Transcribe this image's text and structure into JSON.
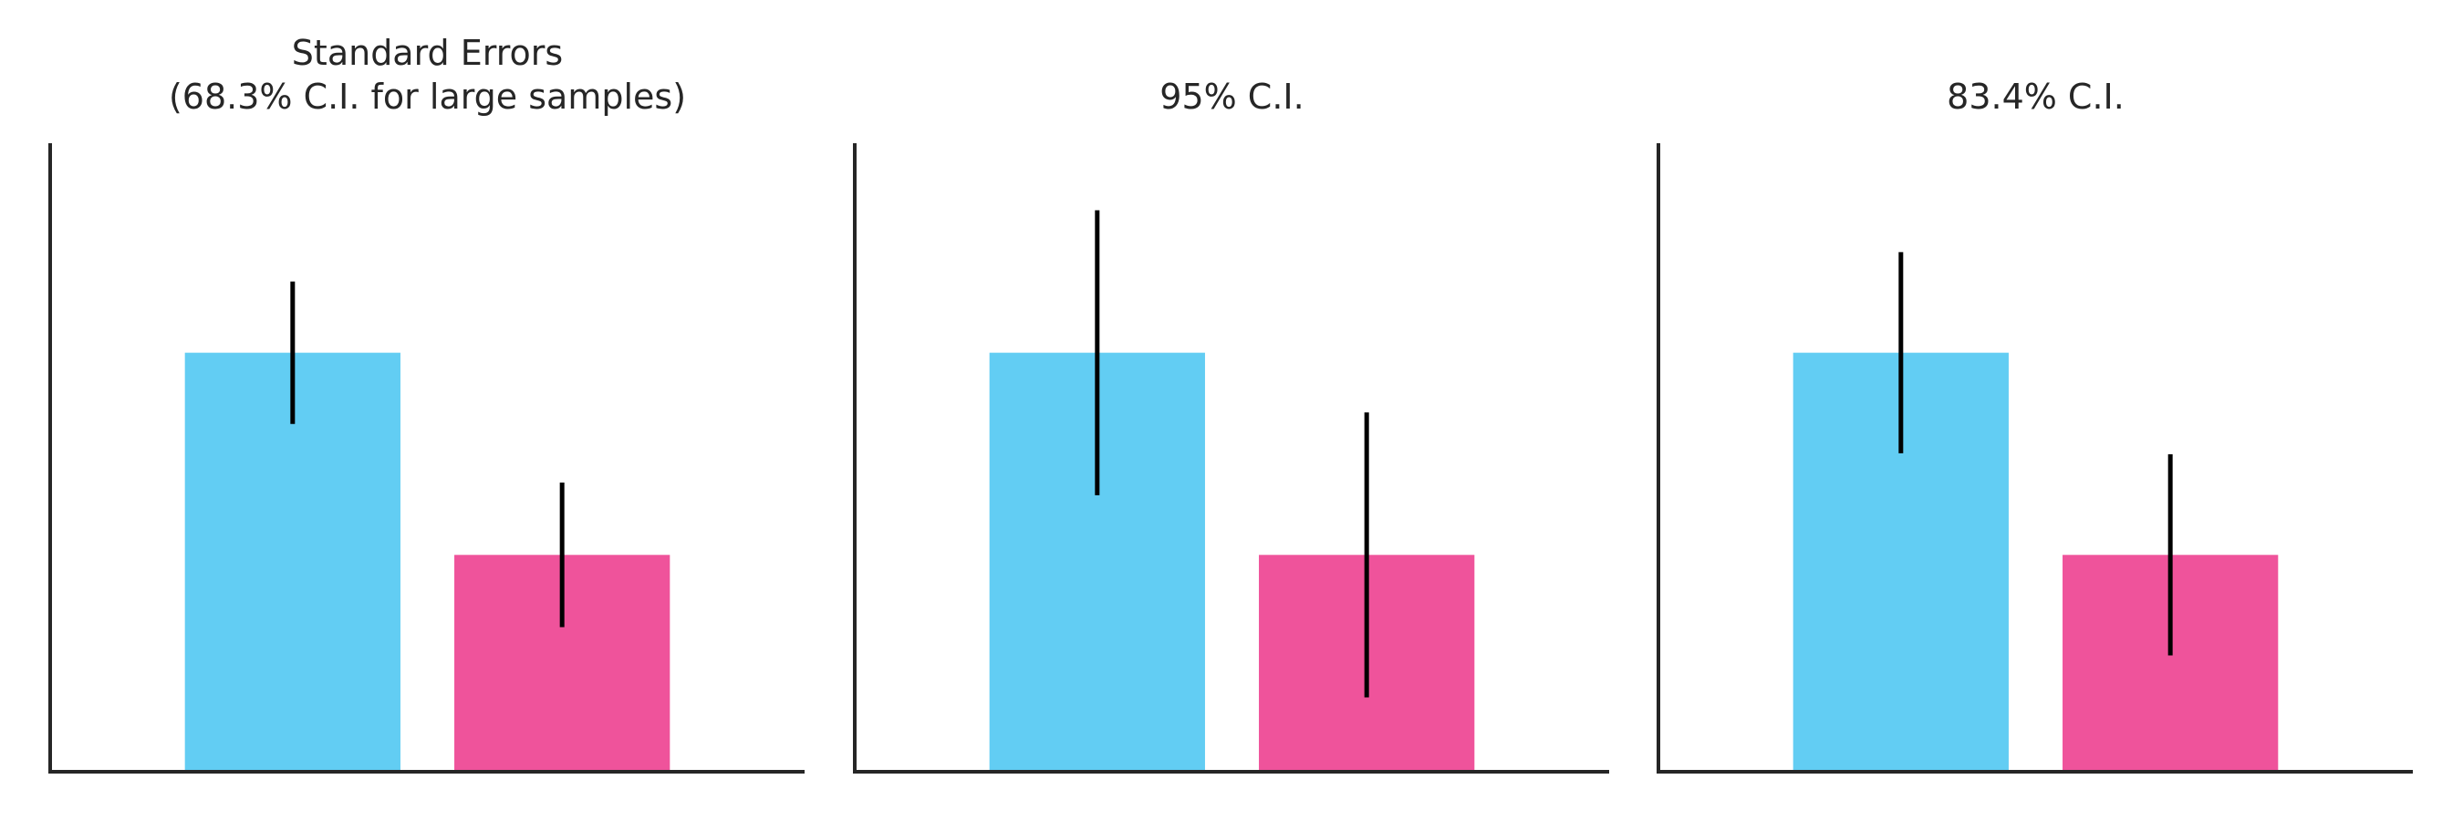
{
  "chart_data": [
    {
      "type": "bar",
      "title": "Standard Errors\n(68.3% C.I. for large samples)",
      "categories": [
        null,
        null
      ],
      "values": [
        2.0,
        1.035
      ],
      "errors": [
        0.34,
        0.345
      ],
      "colors": [
        "#62cdf3",
        "#ef539b"
      ],
      "ylim": [
        0,
        3
      ]
    },
    {
      "type": "bar",
      "title": "95% C.I.",
      "categories": [
        null,
        null
      ],
      "values": [
        2.0,
        1.035
      ],
      "errors": [
        0.68,
        0.68
      ],
      "colors": [
        "#62cdf3",
        "#ef539b"
      ],
      "ylim": [
        0,
        3
      ]
    },
    {
      "type": "bar",
      "title": "83.4% C.I.",
      "categories": [
        null,
        null
      ],
      "values": [
        2.0,
        1.035
      ],
      "errors": [
        0.48,
        0.48
      ],
      "colors": [
        "#62cdf3",
        "#ef539b"
      ],
      "ylim": [
        0,
        3
      ]
    }
  ]
}
